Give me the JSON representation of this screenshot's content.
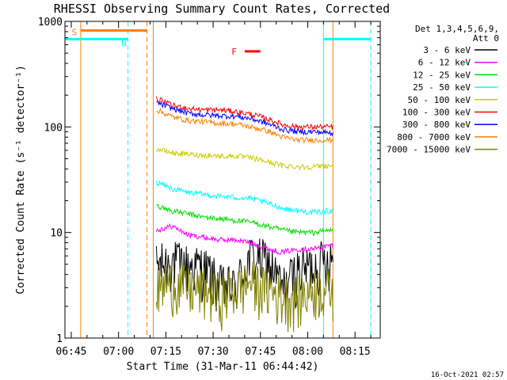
{
  "chart_data": {
    "type": "line",
    "title": "RHESSI Observing Summary Count Rates, Corrected",
    "ylabel": "Corrected Count Rate (s⁻¹ detector⁻¹)",
    "xlabel": "Start Time (31-Mar-11 06:44:42)",
    "yscale": "log",
    "ylim": [
      1,
      1000
    ],
    "xlim": [
      "06:43",
      "08:23"
    ],
    "x_ticks": [
      "06:45",
      "07:00",
      "07:15",
      "07:30",
      "07:45",
      "08:00",
      "08:15"
    ],
    "y_ticks": [
      "1",
      "10",
      "100",
      "1000"
    ],
    "legend": {
      "placement": "right",
      "header": [
        "Det 1,3,4,5,6,9,",
        "Att 0"
      ]
    },
    "series": [
      {
        "name": "3 - 6 keV",
        "color": "#000000",
        "x": [
          "07:12",
          "07:17",
          "07:22",
          "07:27",
          "07:32",
          "07:37",
          "07:42",
          "07:47",
          "07:52",
          "07:57",
          "08:02",
          "08:07"
        ],
        "y": [
          5.0,
          5.5,
          5.0,
          4.8,
          3.2,
          3.0,
          6.0,
          5.5,
          3.0,
          4.5,
          5.0,
          6.0
        ]
      },
      {
        "name": "6 - 12 keV",
        "color": "#ff00ff",
        "x": [
          "07:12",
          "07:17",
          "07:22",
          "07:27",
          "07:32",
          "07:37",
          "07:42",
          "07:47",
          "07:52",
          "07:57",
          "08:02",
          "08:07"
        ],
        "y": [
          10.5,
          11.5,
          9.5,
          9.0,
          8.5,
          8.5,
          8.0,
          7.0,
          6.5,
          7.0,
          7.0,
          7.5
        ]
      },
      {
        "name": "12 - 25 keV",
        "color": "#00dd00",
        "x": [
          "07:12",
          "07:17",
          "07:22",
          "07:27",
          "07:32",
          "07:37",
          "07:42",
          "07:47",
          "07:52",
          "07:57",
          "08:02",
          "08:07"
        ],
        "y": [
          18,
          16,
          15,
          14,
          13.5,
          13,
          12.5,
          11.5,
          10.5,
          10,
          10,
          10.5
        ]
      },
      {
        "name": "25 - 50 keV",
        "color": "#00ffff",
        "x": [
          "07:12",
          "07:17",
          "07:22",
          "07:27",
          "07:32",
          "07:37",
          "07:42",
          "07:47",
          "07:52",
          "07:57",
          "08:02",
          "08:07"
        ],
        "y": [
          30,
          26,
          24,
          23,
          22,
          21.5,
          21,
          19,
          17,
          16,
          15.5,
          16
        ]
      },
      {
        "name": "50 - 100 keV",
        "color": "#cccc00",
        "x": [
          "07:12",
          "07:17",
          "07:22",
          "07:27",
          "07:32",
          "07:37",
          "07:42",
          "07:47",
          "07:52",
          "07:57",
          "08:02",
          "08:07"
        ],
        "y": [
          62,
          57,
          55,
          54,
          53,
          53,
          51,
          47,
          43,
          42,
          42,
          43
        ]
      },
      {
        "name": "100 - 300 keV",
        "color": "#ff0000",
        "x": [
          "07:12",
          "07:17",
          "07:22",
          "07:27",
          "07:32",
          "07:37",
          "07:42",
          "07:47",
          "07:52",
          "07:57",
          "08:02",
          "08:07"
        ],
        "y": [
          185,
          160,
          150,
          145,
          145,
          140,
          132,
          120,
          105,
          100,
          100,
          100
        ]
      },
      {
        "name": "300 - 800 keV",
        "color": "#0000ff",
        "x": [
          "07:12",
          "07:17",
          "07:22",
          "07:27",
          "07:32",
          "07:37",
          "07:42",
          "07:47",
          "07:52",
          "07:57",
          "08:02",
          "08:07"
        ],
        "y": [
          170,
          150,
          135,
          130,
          128,
          126,
          120,
          108,
          95,
          90,
          90,
          88
        ]
      },
      {
        "name": "800 - 7000 keV",
        "color": "#ff8000",
        "x": [
          "07:12",
          "07:17",
          "07:22",
          "07:27",
          "07:32",
          "07:37",
          "07:42",
          "07:47",
          "07:52",
          "07:57",
          "08:02",
          "08:07"
        ],
        "y": [
          145,
          125,
          115,
          112,
          108,
          107,
          100,
          92,
          80,
          75,
          75,
          75
        ]
      },
      {
        "name": "7000 - 15000 keV",
        "color": "#808000",
        "x": [
          "07:12",
          "07:17",
          "07:22",
          "07:27",
          "07:32",
          "07:37",
          "07:42",
          "07:47",
          "07:52",
          "07:57",
          "08:02",
          "08:07"
        ],
        "y": [
          3.0,
          3.5,
          3.0,
          3.0,
          2.5,
          3.0,
          3.5,
          3.0,
          2.5,
          2.5,
          3.0,
          3.0
        ]
      }
    ],
    "annotations": [
      {
        "label": "S",
        "color": "#ff8000",
        "x_start": "06:48",
        "x_end": "07:09",
        "y": 820
      },
      {
        "label": "N",
        "color": "#00ffff",
        "x_start": "06:43",
        "x_end": "07:03",
        "y": 680
      },
      {
        "label": "F",
        "color": "#ff0000",
        "x_start": "07:40",
        "x_end": "07:45",
        "y": 520
      },
      {
        "label": "",
        "color": "#00ffff",
        "x_start": "08:05",
        "x_end": "08:20",
        "y": 680
      }
    ],
    "vertical_lines": [
      {
        "x": "06:48",
        "color": "#ff8000",
        "style": "solid"
      },
      {
        "x": "07:03",
        "color": "#00ffff",
        "style": "dashed"
      },
      {
        "x": "07:09",
        "color": "#ff8000",
        "style": "dashed"
      },
      {
        "x": "07:11",
        "color": "#ff8000",
        "style": "solid"
      },
      {
        "x": "08:05",
        "color": "#00ffff",
        "style": "solid"
      },
      {
        "x": "08:08",
        "color": "#ff8000",
        "style": "solid"
      },
      {
        "x": "08:20",
        "color": "#00ffff",
        "style": "dashed"
      }
    ],
    "footer_timestamp": "16-Oct-2021 02:57"
  }
}
